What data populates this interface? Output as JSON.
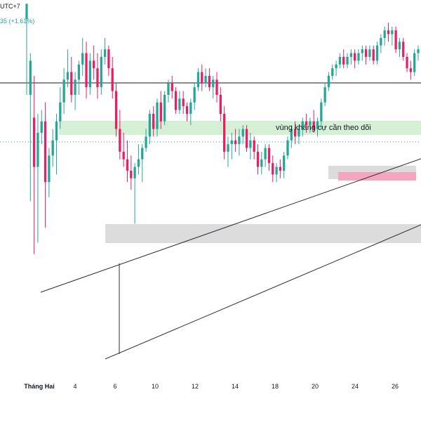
{
  "header": {
    "timezone_fragment": "UTC+7",
    "change_fragment": "35 (+1.61%)"
  },
  "colors": {
    "bullish": "#26a69a",
    "bearish": "#e91e63",
    "resistance_zone": "#d6f0d6",
    "grey_zone": "#dcdcdc",
    "pink_zone": "#f4a6c0",
    "trendline": "#2a2e39",
    "price_line": "#26a69a"
  },
  "chart_data": {
    "type": "candlestick",
    "x_axis": {
      "month_label": "Tháng Hai",
      "tick_labels": [
        "Tháng Hai",
        "4",
        "6",
        "10",
        "12",
        "14",
        "18",
        "20",
        "24",
        "26"
      ]
    },
    "y_axis": {
      "visible": false
    },
    "annotations": {
      "resistance_text": "vùng kháng cự cần theo dõi"
    },
    "candles": [
      [
        95,
        99,
        75,
        99
      ],
      [
        75,
        86,
        47,
        84
      ],
      [
        69,
        80,
        33,
        56
      ],
      [
        56,
        70,
        36,
        65
      ],
      [
        65,
        71,
        62,
        68
      ],
      [
        68,
        73,
        40,
        52
      ],
      [
        52,
        61,
        48,
        59
      ],
      [
        59,
        66,
        56,
        63
      ],
      [
        63,
        70,
        54,
        68
      ],
      [
        68,
        77,
        66,
        73
      ],
      [
        73,
        82,
        70,
        79
      ],
      [
        79,
        87,
        77,
        81
      ],
      [
        81,
        85,
        73,
        75
      ],
      [
        75,
        81,
        71,
        79
      ],
      [
        79,
        84,
        75,
        83
      ],
      [
        83,
        90,
        80,
        86
      ],
      [
        86,
        89,
        74,
        77
      ],
      [
        77,
        86,
        75,
        84
      ],
      [
        84,
        88,
        79,
        82
      ],
      [
        82,
        86,
        74,
        77
      ],
      [
        77,
        87,
        75,
        85
      ],
      [
        85,
        90,
        83,
        87
      ],
      [
        87,
        88,
        80,
        82
      ],
      [
        82,
        85,
        74,
        76
      ],
      [
        76,
        78,
        64,
        66
      ],
      [
        66,
        71,
        58,
        60
      ],
      [
        60,
        65,
        56,
        58
      ],
      [
        58,
        63,
        52,
        55
      ],
      [
        55,
        59,
        50,
        53
      ],
      [
        53,
        57,
        41,
        56
      ],
      [
        56,
        62,
        54,
        58
      ],
      [
        58,
        62,
        52,
        61
      ],
      [
        61,
        66,
        60,
        64
      ],
      [
        64,
        71,
        62,
        70
      ],
      [
        70,
        72,
        64,
        66
      ],
      [
        66,
        74,
        64,
        73
      ],
      [
        73,
        76,
        66,
        68
      ],
      [
        68,
        76,
        67,
        75
      ],
      [
        75,
        79,
        73,
        78
      ],
      [
        78,
        80,
        74,
        76
      ],
      [
        76,
        77,
        70,
        71
      ],
      [
        71,
        76,
        70,
        74
      ],
      [
        74,
        76,
        70,
        72
      ],
      [
        72,
        73,
        68,
        70
      ],
      [
        70,
        74,
        67,
        73
      ],
      [
        73,
        78,
        71,
        77
      ],
      [
        77,
        82,
        76,
        81
      ],
      [
        81,
        83,
        76,
        78
      ],
      [
        78,
        82,
        77,
        80
      ],
      [
        80,
        82,
        76,
        77
      ],
      [
        77,
        80,
        74,
        79
      ],
      [
        79,
        81,
        73,
        75
      ],
      [
        75,
        77,
        68,
        70
      ],
      [
        70,
        72,
        58,
        60
      ],
      [
        60,
        64,
        56,
        62
      ],
      [
        62,
        65,
        58,
        63
      ],
      [
        63,
        66,
        60,
        62
      ],
      [
        62,
        66,
        59,
        64
      ],
      [
        64,
        67,
        62,
        66
      ],
      [
        66,
        67,
        60,
        61
      ],
      [
        61,
        65,
        58,
        63
      ],
      [
        63,
        64,
        58,
        60
      ],
      [
        60,
        62,
        54,
        56
      ],
      [
        56,
        60,
        54,
        58
      ],
      [
        58,
        62,
        56,
        61
      ],
      [
        61,
        62,
        55,
        57
      ],
      [
        57,
        59,
        52,
        54
      ],
      [
        54,
        57,
        52,
        56
      ],
      [
        56,
        58,
        53,
        55
      ],
      [
        55,
        60,
        53,
        59
      ],
      [
        59,
        64,
        58,
        63
      ],
      [
        63,
        67,
        61,
        66
      ],
      [
        66,
        68,
        62,
        64
      ],
      [
        64,
        67,
        62,
        66
      ],
      [
        66,
        69,
        64,
        68
      ],
      [
        68,
        70,
        65,
        67
      ],
      [
        67,
        69,
        65,
        68
      ],
      [
        68,
        71,
        65,
        66
      ],
      [
        66,
        69,
        64,
        68
      ],
      [
        68,
        74,
        66,
        73
      ],
      [
        73,
        78,
        72,
        77
      ],
      [
        77,
        81,
        76,
        80
      ],
      [
        80,
        83,
        79,
        82
      ],
      [
        82,
        84,
        80,
        83
      ],
      [
        83,
        86,
        82,
        85
      ],
      [
        85,
        87,
        82,
        83
      ],
      [
        83,
        86,
        82,
        85
      ],
      [
        85,
        87,
        83,
        86
      ],
      [
        86,
        87,
        82,
        84
      ],
      [
        84,
        87,
        83,
        86
      ],
      [
        86,
        88,
        84,
        87
      ],
      [
        87,
        88,
        83,
        85
      ],
      [
        85,
        88,
        84,
        87
      ],
      [
        87,
        88,
        83,
        84
      ],
      [
        84,
        89,
        83,
        88
      ],
      [
        88,
        91,
        86,
        90
      ],
      [
        90,
        93,
        88,
        92
      ],
      [
        92,
        94,
        89,
        91
      ],
      [
        91,
        93,
        88,
        92
      ],
      [
        92,
        93,
        86,
        87
      ],
      [
        87,
        90,
        85,
        89
      ],
      [
        89,
        90,
        84,
        85
      ],
      [
        85,
        86,
        81,
        82
      ],
      [
        82,
        84,
        79,
        81
      ],
      [
        81,
        87,
        80,
        86
      ],
      [
        86,
        88,
        84,
        87
      ]
    ]
  }
}
